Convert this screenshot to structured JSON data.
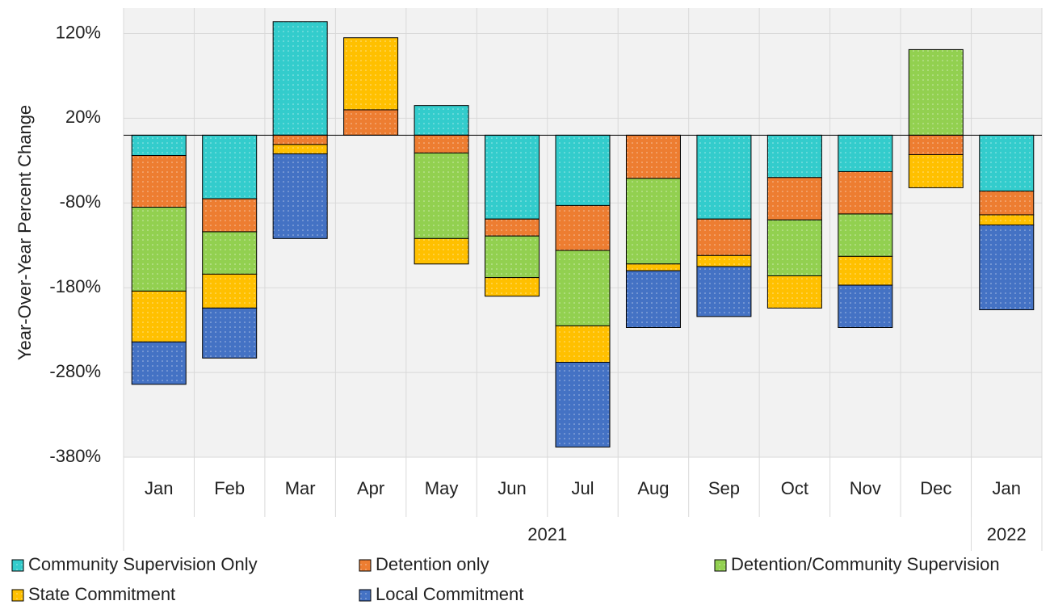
{
  "chart_data": {
    "type": "stacked_bar",
    "y_label": "Year-Over-Year Percent Change",
    "categories": [
      "Jan",
      "Feb",
      "Mar",
      "Apr",
      "May",
      "Jun",
      "Jul",
      "Aug",
      "Sep",
      "Oct",
      "Nov",
      "Dec",
      "Jan"
    ],
    "groups": [
      {
        "label": "2021",
        "span": 12
      },
      {
        "label": "2022",
        "span": 1
      }
    ],
    "ylim": [
      -380,
      150
    ],
    "yticks": [
      {
        "value": -380,
        "label": "-380%"
      },
      {
        "value": -280,
        "label": "-280%"
      },
      {
        "value": -180,
        "label": "-180%"
      },
      {
        "value": -80,
        "label": "-80%"
      },
      {
        "value": 20,
        "label": "20%"
      },
      {
        "value": 120,
        "label": "120%"
      }
    ],
    "grid": true,
    "series": [
      {
        "name": "Community Supervision Only",
        "color": "#33cccc",
        "values": [
          -24,
          -75,
          134,
          0,
          35,
          -99,
          -83,
          0,
          -99,
          -50,
          -43,
          0,
          -66
        ]
      },
      {
        "name": "Detention only",
        "color": "#ed7d31",
        "values": [
          -61,
          -39,
          -11,
          30,
          -21,
          -20,
          -53,
          -51,
          -43,
          -50,
          -50,
          -23,
          -28
        ]
      },
      {
        "name": "Detention/Community Supervision",
        "color": "#92d050",
        "values": [
          -99,
          -50,
          0,
          0,
          -101,
          -49,
          -89,
          -101,
          0,
          -66,
          -50,
          101,
          0
        ]
      },
      {
        "name": "State Commitment",
        "color": "#ffc000",
        "values": [
          -60,
          -40,
          -11,
          85,
          -30,
          -22,
          -43,
          -8,
          -13,
          -38,
          -34,
          -39,
          -12
        ]
      },
      {
        "name": "Local Commitment",
        "color": "#4472c4",
        "values": [
          -50,
          -59,
          -100,
          0,
          0,
          0,
          -100,
          -67,
          -59,
          0,
          -50,
          0,
          -100
        ]
      }
    ]
  }
}
